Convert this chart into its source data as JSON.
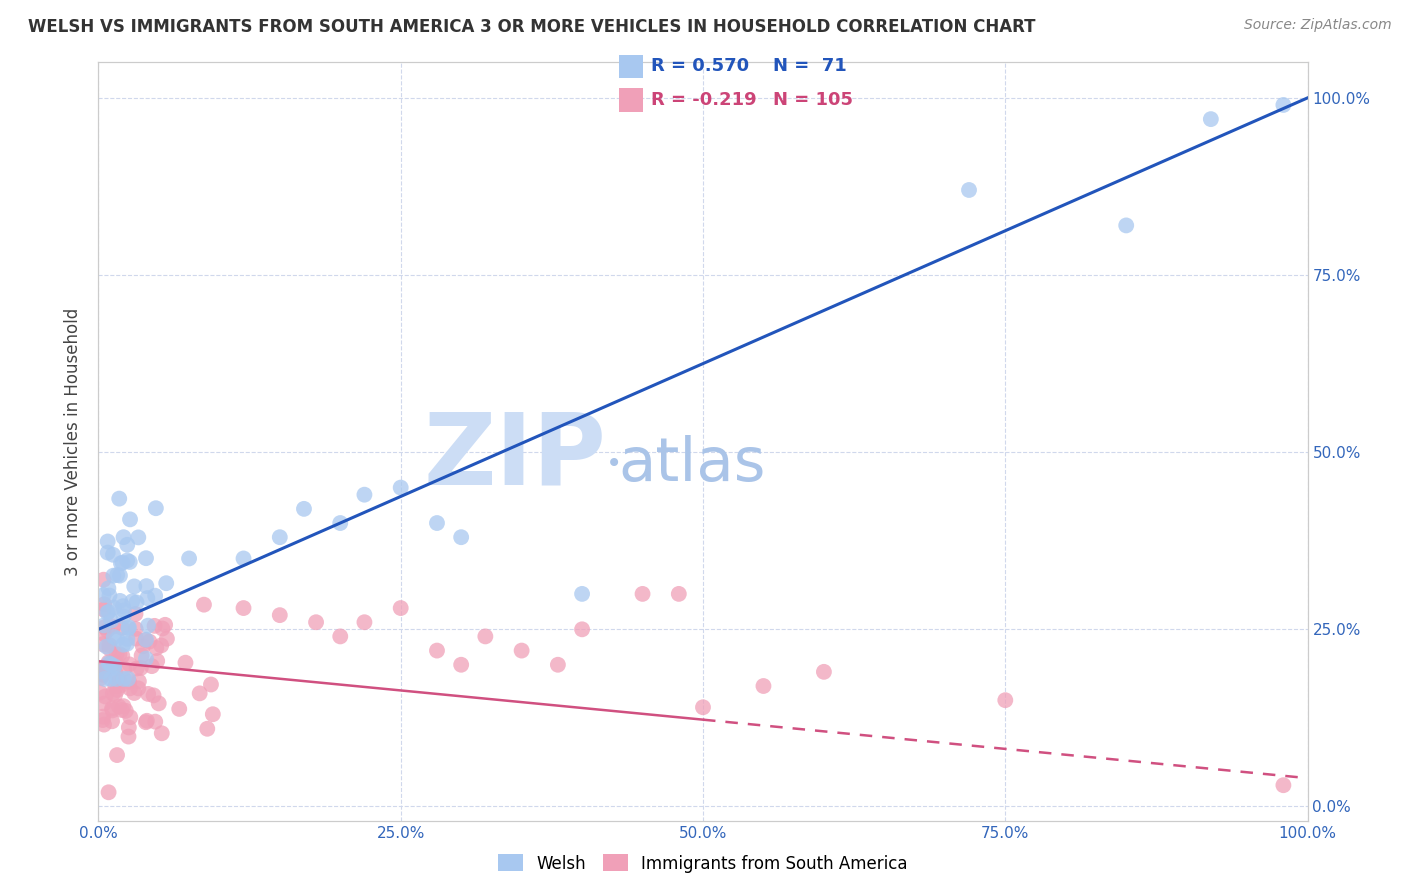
{
  "title": "WELSH VS IMMIGRANTS FROM SOUTH AMERICA 3 OR MORE VEHICLES IN HOUSEHOLD CORRELATION CHART",
  "source": "Source: ZipAtlas.com",
  "ylabel": "3 or more Vehicles in Household",
  "xlim": [
    0,
    1.0
  ],
  "ylim": [
    -0.02,
    1.05
  ],
  "xticks": [
    0.0,
    0.25,
    0.5,
    0.75,
    1.0
  ],
  "yticks": [
    0.0,
    0.25,
    0.5,
    0.75,
    1.0
  ],
  "xticklabels": [
    "0.0%",
    "25.0%",
    "50.0%",
    "75.0%",
    "100.0%"
  ],
  "yticklabels_right": [
    "0.0%",
    "25.0%",
    "50.0%",
    "75.0%",
    "100.0%"
  ],
  "welsh_R": 0.57,
  "welsh_N": 71,
  "sa_R": -0.219,
  "sa_N": 105,
  "welsh_color": "#a8c8f0",
  "welsh_line_color": "#2255bb",
  "sa_color": "#f0a0b8",
  "sa_line_color": "#d05080",
  "watermark_zip": "ZIP",
  "watermark_atlas": "atlas",
  "watermark_dot": "•",
  "background_color": "#ffffff",
  "legend_R_color_welsh": "#2255bb",
  "legend_R_color_sa": "#cc4477",
  "title_fontsize": 12,
  "source_fontsize": 10,
  "tick_fontsize": 11,
  "ylabel_fontsize": 12,
  "legend_fontsize": 13
}
